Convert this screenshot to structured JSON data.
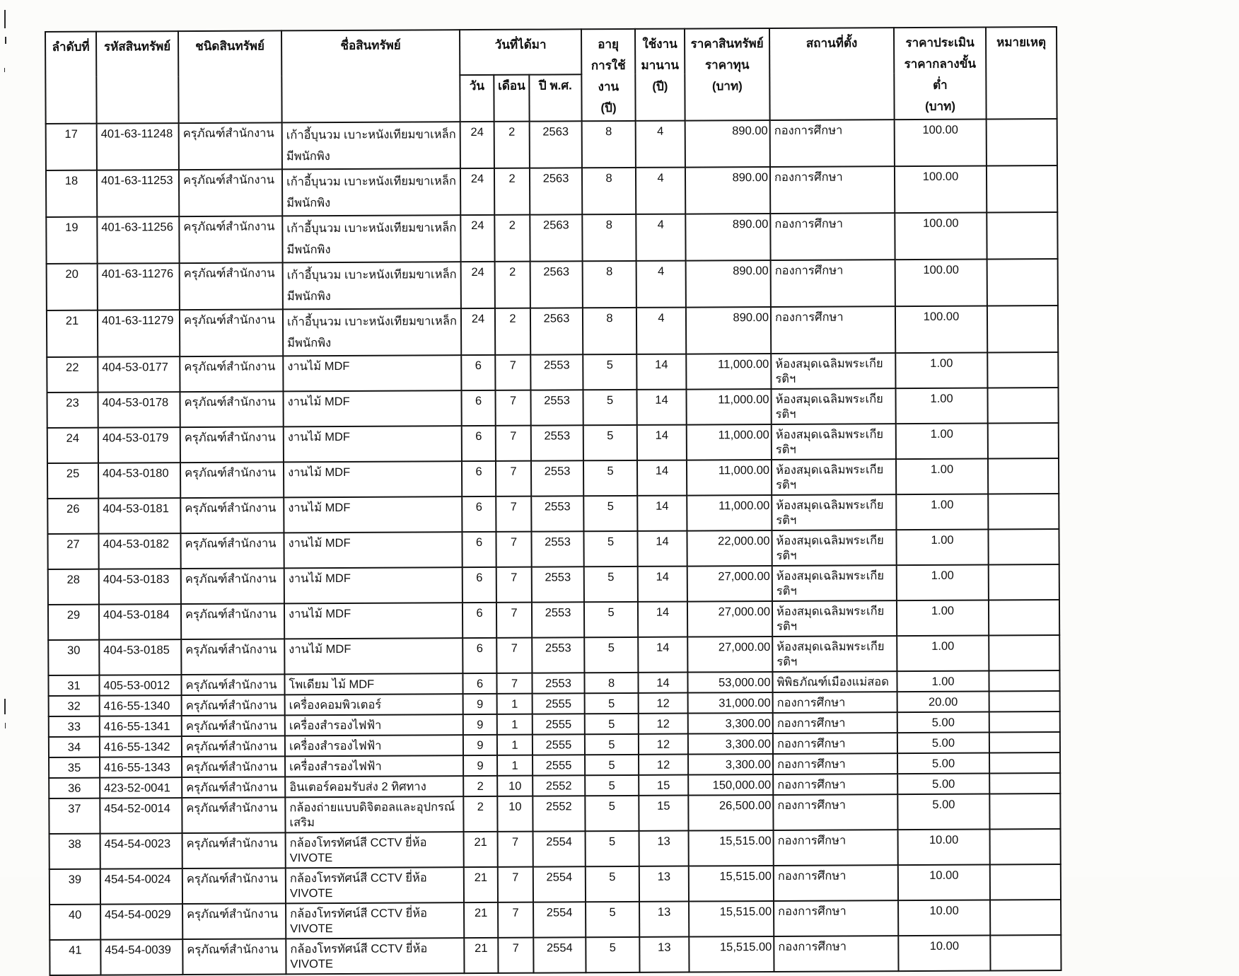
{
  "header": {
    "no": "ลำดับที่",
    "code": "รหัสสินทรัพย์",
    "type": "ชนิดสินทรัพย์",
    "name": "ชื่อสินทรัพย์",
    "acquired": "วันที่ได้มา",
    "day": "วัน",
    "month": "เดือน",
    "year": "ปี พ.ศ.",
    "life": {
      "l1": "อายุ",
      "l2": "การใช้งาน",
      "l3": "(ปี)"
    },
    "used": {
      "l1": "ใช้งาน",
      "l2": "มานาน",
      "l3": "(ปี)"
    },
    "cost": {
      "l1": "ราคาสินทรัพย์",
      "l2": "ราคาทุน",
      "l3": "(บาท)"
    },
    "location": "สถานที่ตั้ง",
    "appraised": {
      "l1": "ราคาประเมิน",
      "l2": "ราคากลางขั้นต่ำ",
      "l3": "(บาท)"
    },
    "note": "หมายเหตุ"
  },
  "rows": [
    {
      "tall": true,
      "no": "17",
      "code": "401-63-11248",
      "type": "ครุภัณฑ์สำนักงาน",
      "name": "เก้าอี้บุนวม เบาะหนังเทียมขาเหล็ก มีพนักพิง",
      "day": "24",
      "month": "2",
      "year": "2563",
      "life": "8",
      "used": "4",
      "cost": "890.00",
      "location": "กองการศึกษา",
      "appraised": "100.00",
      "note": ""
    },
    {
      "tall": true,
      "no": "18",
      "code": "401-63-11253",
      "type": "ครุภัณฑ์สำนักงาน",
      "name": "เก้าอี้บุนวม เบาะหนังเทียมขาเหล็ก มีพนักพิง",
      "day": "24",
      "month": "2",
      "year": "2563",
      "life": "8",
      "used": "4",
      "cost": "890.00",
      "location": "กองการศึกษา",
      "appraised": "100.00",
      "note": ""
    },
    {
      "tall": true,
      "no": "19",
      "code": "401-63-11256",
      "type": "ครุภัณฑ์สำนักงาน",
      "name": "เก้าอี้บุนวม เบาะหนังเทียมขาเหล็ก มีพนักพิง",
      "day": "24",
      "month": "2",
      "year": "2563",
      "life": "8",
      "used": "4",
      "cost": "890.00",
      "location": "กองการศึกษา",
      "appraised": "100.00",
      "note": ""
    },
    {
      "tall": true,
      "no": "20",
      "code": "401-63-11276",
      "type": "ครุภัณฑ์สำนักงาน",
      "name": "เก้าอี้บุนวม เบาะหนังเทียมขาเหล็ก มีพนักพิง",
      "day": "24",
      "month": "2",
      "year": "2563",
      "life": "8",
      "used": "4",
      "cost": "890.00",
      "location": "กองการศึกษา",
      "appraised": "100.00",
      "note": ""
    },
    {
      "tall": true,
      "no": "21",
      "code": "401-63-11279",
      "type": "ครุภัณฑ์สำนักงาน",
      "name": "เก้าอี้บุนวม เบาะหนังเทียมขาเหล็ก มีพนักพิง",
      "day": "24",
      "month": "2",
      "year": "2563",
      "life": "8",
      "used": "4",
      "cost": "890.00",
      "location": "กองการศึกษา",
      "appraised": "100.00",
      "note": ""
    },
    {
      "tall": false,
      "no": "22",
      "code": "404-53-0177",
      "type": "ครุภัณฑ์สำนักงาน",
      "name": "งานไม้ MDF",
      "day": "6",
      "month": "7",
      "year": "2553",
      "life": "5",
      "used": "14",
      "cost": "11,000.00",
      "location": "ห้องสมุดเฉลิมพระเกียรติฯ",
      "appraised": "1.00",
      "note": ""
    },
    {
      "tall": false,
      "no": "23",
      "code": "404-53-0178",
      "type": "ครุภัณฑ์สำนักงาน",
      "name": "งานไม้ MDF",
      "day": "6",
      "month": "7",
      "year": "2553",
      "life": "5",
      "used": "14",
      "cost": "11,000.00",
      "location": "ห้องสมุดเฉลิมพระเกียรติฯ",
      "appraised": "1.00",
      "note": ""
    },
    {
      "tall": false,
      "no": "24",
      "code": "404-53-0179",
      "type": "ครุภัณฑ์สำนักงาน",
      "name": "งานไม้ MDF",
      "day": "6",
      "month": "7",
      "year": "2553",
      "life": "5",
      "used": "14",
      "cost": "11,000.00",
      "location": "ห้องสมุดเฉลิมพระเกียรติฯ",
      "appraised": "1.00",
      "note": ""
    },
    {
      "tall": false,
      "no": "25",
      "code": "404-53-0180",
      "type": "ครุภัณฑ์สำนักงาน",
      "name": "งานไม้ MDF",
      "day": "6",
      "month": "7",
      "year": "2553",
      "life": "5",
      "used": "14",
      "cost": "11,000.00",
      "location": "ห้องสมุดเฉลิมพระเกียรติฯ",
      "appraised": "1.00",
      "note": ""
    },
    {
      "tall": false,
      "no": "26",
      "code": "404-53-0181",
      "type": "ครุภัณฑ์สำนักงาน",
      "name": "งานไม้ MDF",
      "day": "6",
      "month": "7",
      "year": "2553",
      "life": "5",
      "used": "14",
      "cost": "11,000.00",
      "location": "ห้องสมุดเฉลิมพระเกียรติฯ",
      "appraised": "1.00",
      "note": ""
    },
    {
      "tall": false,
      "no": "27",
      "code": "404-53-0182",
      "type": "ครุภัณฑ์สำนักงาน",
      "name": "งานไม้ MDF",
      "day": "6",
      "month": "7",
      "year": "2553",
      "life": "5",
      "used": "14",
      "cost": "22,000.00",
      "location": "ห้องสมุดเฉลิมพระเกียรติฯ",
      "appraised": "1.00",
      "note": ""
    },
    {
      "tall": false,
      "no": "28",
      "code": "404-53-0183",
      "type": "ครุภัณฑ์สำนักงาน",
      "name": "งานไม้ MDF",
      "day": "6",
      "month": "7",
      "year": "2553",
      "life": "5",
      "used": "14",
      "cost": "27,000.00",
      "location": "ห้องสมุดเฉลิมพระเกียรติฯ",
      "appraised": "1.00",
      "note": ""
    },
    {
      "tall": false,
      "no": "29",
      "code": "404-53-0184",
      "type": "ครุภัณฑ์สำนักงาน",
      "name": "งานไม้ MDF",
      "day": "6",
      "month": "7",
      "year": "2553",
      "life": "5",
      "used": "14",
      "cost": "27,000.00",
      "location": "ห้องสมุดเฉลิมพระเกียรติฯ",
      "appraised": "1.00",
      "note": ""
    },
    {
      "tall": false,
      "no": "30",
      "code": "404-53-0185",
      "type": "ครุภัณฑ์สำนักงาน",
      "name": "งานไม้ MDF",
      "day": "6",
      "month": "7",
      "year": "2553",
      "life": "5",
      "used": "14",
      "cost": "27,000.00",
      "location": "ห้องสมุดเฉลิมพระเกียรติฯ",
      "appraised": "1.00",
      "note": ""
    },
    {
      "tall": false,
      "no": "31",
      "code": "405-53-0012",
      "type": "ครุภัณฑ์สำนักงาน",
      "name": "โพเดียม ไม้ MDF",
      "day": "6",
      "month": "7",
      "year": "2553",
      "life": "8",
      "used": "14",
      "cost": "53,000.00",
      "location": "พิพิธภัณฑ์เมืองแม่สอด",
      "appraised": "1.00",
      "note": ""
    },
    {
      "tall": false,
      "no": "32",
      "code": "416-55-1340",
      "type": "ครุภัณฑ์สำนักงาน",
      "name": "เครื่องคอมพิวเตอร์",
      "day": "9",
      "month": "1",
      "year": "2555",
      "life": "5",
      "used": "12",
      "cost": "31,000.00",
      "location": "กองการศึกษา",
      "appraised": "20.00",
      "note": ""
    },
    {
      "tall": false,
      "no": "33",
      "code": "416-55-1341",
      "type": "ครุภัณฑ์สำนักงาน",
      "name": "เครื่องสำรองไฟฟ้า",
      "day": "9",
      "month": "1",
      "year": "2555",
      "life": "5",
      "used": "12",
      "cost": "3,300.00",
      "location": "กองการศึกษา",
      "appraised": "5.00",
      "note": ""
    },
    {
      "tall": false,
      "no": "34",
      "code": "416-55-1342",
      "type": "ครุภัณฑ์สำนักงาน",
      "name": "เครื่องสำรองไฟฟ้า",
      "day": "9",
      "month": "1",
      "year": "2555",
      "life": "5",
      "used": "12",
      "cost": "3,300.00",
      "location": "กองการศึกษา",
      "appraised": "5.00",
      "note": ""
    },
    {
      "tall": false,
      "no": "35",
      "code": "416-55-1343",
      "type": "ครุภัณฑ์สำนักงาน",
      "name": "เครื่องสำรองไฟฟ้า",
      "day": "9",
      "month": "1",
      "year": "2555",
      "life": "5",
      "used": "12",
      "cost": "3,300.00",
      "location": "กองการศึกษา",
      "appraised": "5.00",
      "note": ""
    },
    {
      "tall": false,
      "no": "36",
      "code": "423-52-0041",
      "type": "ครุภัณฑ์สำนักงาน",
      "name": "อินเตอร์คอมรับส่ง 2 ทิศทาง",
      "day": "2",
      "month": "10",
      "year": "2552",
      "life": "5",
      "used": "15",
      "cost": "150,000.00",
      "location": "กองการศึกษา",
      "appraised": "5.00",
      "note": ""
    },
    {
      "tall": false,
      "no": "37",
      "code": "454-52-0014",
      "type": "ครุภัณฑ์สำนักงาน",
      "name": "กล้องถ่ายแบบดิจิตอลและอุปกรณ์เสริม",
      "day": "2",
      "month": "10",
      "year": "2552",
      "life": "5",
      "used": "15",
      "cost": "26,500.00",
      "location": "กองการศึกษา",
      "appraised": "5.00",
      "note": ""
    },
    {
      "tall": false,
      "no": "38",
      "code": "454-54-0023",
      "type": "ครุภัณฑ์สำนักงาน",
      "name": "กล้องโทรทัศน์สี CCTV ยี่ห้อ VIVOTE",
      "day": "21",
      "month": "7",
      "year": "2554",
      "life": "5",
      "used": "13",
      "cost": "15,515.00",
      "location": "กองการศึกษา",
      "appraised": "10.00",
      "note": ""
    },
    {
      "tall": false,
      "no": "39",
      "code": "454-54-0024",
      "type": "ครุภัณฑ์สำนักงาน",
      "name": "กล้องโทรทัศน์สี CCTV ยี่ห้อ VIVOTE",
      "day": "21",
      "month": "7",
      "year": "2554",
      "life": "5",
      "used": "13",
      "cost": "15,515.00",
      "location": "กองการศึกษา",
      "appraised": "10.00",
      "note": ""
    },
    {
      "tall": false,
      "no": "40",
      "code": "454-54-0029",
      "type": "ครุภัณฑ์สำนักงาน",
      "name": "กล้องโทรทัศน์สี CCTV ยี่ห้อ VIVOTE",
      "day": "21",
      "month": "7",
      "year": "2554",
      "life": "5",
      "used": "13",
      "cost": "15,515.00",
      "location": "กองการศึกษา",
      "appraised": "10.00",
      "note": ""
    },
    {
      "tall": false,
      "no": "41",
      "code": "454-54-0039",
      "type": "ครุภัณฑ์สำนักงาน",
      "name": "กล้องโทรทัศน์สี CCTV ยี่ห้อ VIVOTE",
      "day": "21",
      "month": "7",
      "year": "2554",
      "life": "5",
      "used": "13",
      "cost": "15,515.00",
      "location": "กองการศึกษา",
      "appraised": "10.00",
      "note": ""
    }
  ]
}
